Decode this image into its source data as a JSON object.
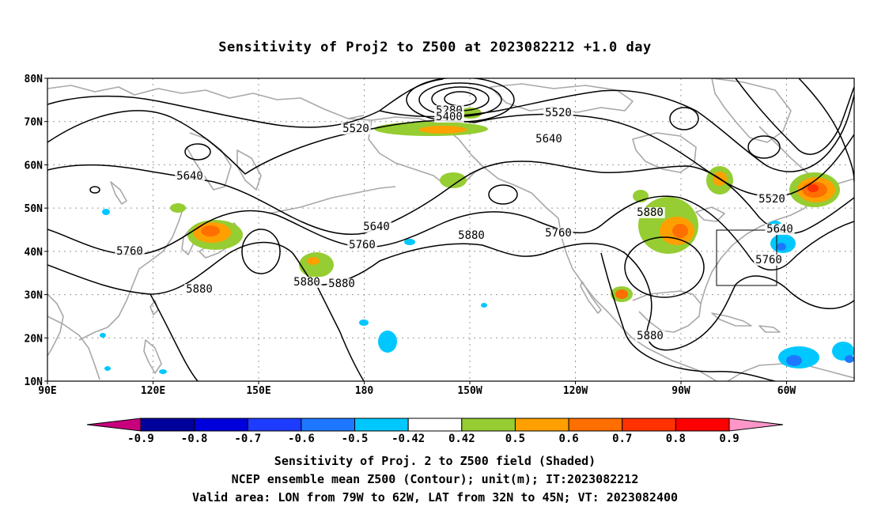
{
  "title": "Sensitivity of Proj2 to Z500 at 2023082212 +1.0 day",
  "lat_labels": [
    "80N",
    "70N",
    "60N",
    "50N",
    "40N",
    "30N",
    "20N",
    "10N"
  ],
  "lon_labels": [
    "90E",
    "120E",
    "150E",
    "180",
    "150W",
    "120W",
    "90W",
    "60W"
  ],
  "contour_labels": [
    "5280",
    "5400",
    "5520",
    "5520",
    "5520",
    "5640",
    "5640",
    "5640",
    "5640",
    "5760",
    "5760",
    "5760",
    "5760",
    "5880",
    "5880",
    "5880",
    "5880",
    "5880",
    "5880"
  ],
  "colorbar": {
    "values": [
      "-0.9",
      "-0.8",
      "-0.7",
      "-0.6",
      "-0.5",
      "-0.42",
      "0.42",
      "0.5",
      "0.6",
      "0.7",
      "0.8",
      "0.9"
    ],
    "colors": [
      "#c8007d",
      "#00009b",
      "#0000dc",
      "#1e3cff",
      "#1e78ff",
      "#00c8ff",
      "#ffffff",
      "#96cd32",
      "#ffa000",
      "#ff6e00",
      "#ff3200",
      "#ff0000",
      "#ff96c8"
    ]
  },
  "valid_box": {
    "lon_west": "79W",
    "lon_east": "62W",
    "lat_south": "32N",
    "lat_north": "45N"
  },
  "captions": {
    "line1": "Sensitivity of Proj. 2 to Z500 field (Shaded)",
    "line2": "NCEP ensemble mean Z500 (Contour); unit(m); IT:2023082212",
    "line3": "Valid area: LON from 79W to 62W, LAT from 32N to 45N; VT: 2023082400"
  }
}
